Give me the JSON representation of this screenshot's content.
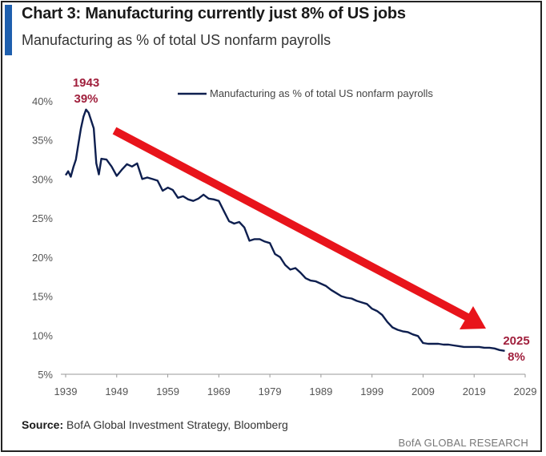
{
  "header": {
    "title": "Chart 3: Manufacturing currently just 8% of US jobs",
    "subtitle": "Manufacturing as % of total US nonfarm payrolls"
  },
  "footer": {
    "source_label": "Source:",
    "source_text": "BofA Global Investment Strategy, Bloomberg",
    "brand": "BofA GLOBAL RESEARCH"
  },
  "colors": {
    "line": "#0e1f4f",
    "arrow": "#e8141b",
    "annotation": "#a01f3c",
    "accent": "#1e5fae"
  },
  "chart_data": {
    "type": "line",
    "title": "Chart 3: Manufacturing currently just 8% of US jobs",
    "subtitle": "Manufacturing as % of total US nonfarm payrolls",
    "xlabel": "",
    "ylabel": "",
    "xlim": [
      1939,
      2029
    ],
    "ylim": [
      5,
      40
    ],
    "x_ticks": [
      "1939",
      "1949",
      "1959",
      "1969",
      "1979",
      "1989",
      "1999",
      "2009",
      "2019",
      "2029"
    ],
    "y_ticks": [
      "5%",
      "10%",
      "15%",
      "20%",
      "25%",
      "30%",
      "35%",
      "40%"
    ],
    "grid": false,
    "legend_position": "top",
    "series": [
      {
        "name": "Manufacturing as % of total US nonfarm payrolls",
        "x": [
          1939,
          1939.5,
          1940,
          1940.5,
          1941,
          1941.5,
          1942,
          1942.5,
          1943,
          1943.5,
          1944,
          1944.5,
          1945,
          1945.5,
          1946,
          1947,
          1948,
          1949,
          1950,
          1951,
          1952,
          1953,
          1954,
          1955,
          1956,
          1957,
          1958,
          1959,
          1960,
          1961,
          1962,
          1963,
          1964,
          1965,
          1966,
          1967,
          1968,
          1969,
          1970,
          1971,
          1972,
          1973,
          1974,
          1975,
          1976,
          1977,
          1978,
          1979,
          1980,
          1981,
          1982,
          1983,
          1984,
          1985,
          1986,
          1987,
          1988,
          1989,
          1990,
          1991,
          1992,
          1993,
          1994,
          1995,
          1996,
          1997,
          1998,
          1999,
          2000,
          2001,
          2002,
          2003,
          2004,
          2005,
          2006,
          2007,
          2008,
          2009,
          2010,
          2011,
          2012,
          2013,
          2014,
          2015,
          2016,
          2017,
          2018,
          2019,
          2020,
          2021,
          2022,
          2023,
          2024,
          2025
        ],
        "values": [
          30.5,
          31.0,
          30.3,
          31.5,
          32.5,
          34.5,
          36.5,
          38.0,
          38.9,
          38.5,
          37.5,
          36.5,
          32.0,
          30.6,
          32.6,
          32.5,
          31.6,
          30.4,
          31.2,
          31.9,
          31.6,
          32.0,
          30.0,
          30.2,
          30.0,
          29.8,
          28.5,
          28.9,
          28.6,
          27.6,
          27.8,
          27.4,
          27.2,
          27.5,
          28.0,
          27.5,
          27.4,
          27.2,
          25.9,
          24.6,
          24.3,
          24.5,
          23.8,
          22.1,
          22.3,
          22.3,
          22.0,
          21.8,
          20.4,
          20.0,
          19.0,
          18.4,
          18.6,
          18.0,
          17.3,
          17.0,
          16.9,
          16.6,
          16.3,
          15.8,
          15.4,
          15.0,
          14.8,
          14.7,
          14.4,
          14.2,
          14.0,
          13.4,
          13.1,
          12.6,
          11.7,
          11.0,
          10.7,
          10.5,
          10.4,
          10.1,
          9.9,
          9.0,
          8.9,
          8.9,
          8.9,
          8.8,
          8.8,
          8.7,
          8.6,
          8.5,
          8.5,
          8.5,
          8.5,
          8.4,
          8.4,
          8.3,
          8.1,
          8.0
        ]
      }
    ],
    "annotations": [
      {
        "year": "1943",
        "value": "39%"
      },
      {
        "year": "2025",
        "value": "8%"
      }
    ]
  }
}
